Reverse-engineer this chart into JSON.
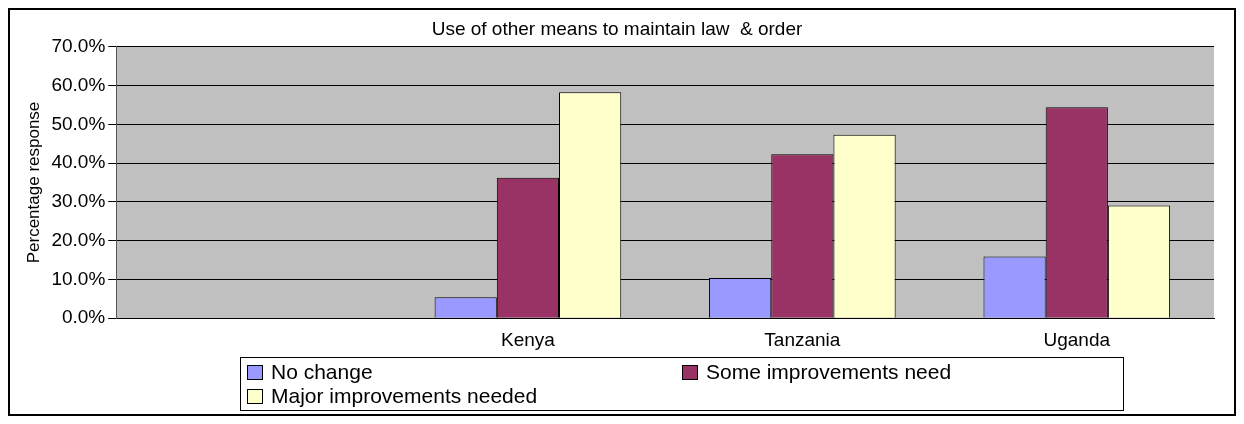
{
  "chart_data": {
    "type": "bar",
    "title": "Use of other means to maintain law  & order",
    "ylabel": "Percentage response",
    "categories": [
      null,
      "Kenya",
      "Tanzania",
      "Uganda"
    ],
    "series": [
      {
        "name": "No change",
        "color": "#9999ff",
        "values": [
          null,
          5.4,
          10.4,
          15.9
        ]
      },
      {
        "name": "Some improvements need",
        "color": "#993366",
        "values": [
          null,
          36.2,
          42.3,
          54.4
        ]
      },
      {
        "name": "Major improvements needed",
        "color": "#ffffcc",
        "values": [
          null,
          58.3,
          47.3,
          29.1
        ]
      }
    ],
    "ylim": [
      0,
      70
    ],
    "yticks": [
      {
        "value": 0,
        "label": "0.0%"
      },
      {
        "value": 10,
        "label": "10.0%"
      },
      {
        "value": 20,
        "label": "20.0%"
      },
      {
        "value": 30,
        "label": "30.0%"
      },
      {
        "value": 40,
        "label": "40.0%"
      },
      {
        "value": 50,
        "label": "50.0%"
      },
      {
        "value": 60,
        "label": "60.0%"
      },
      {
        "value": 70,
        "label": "70.0%"
      }
    ],
    "grid": "y",
    "legend": "bottom"
  }
}
